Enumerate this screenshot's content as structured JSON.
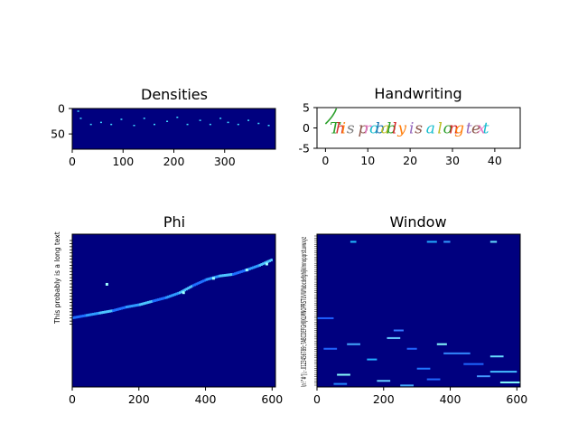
{
  "chart_data": [
    {
      "type": "heatmap",
      "title": "Densities",
      "xlim": [
        0,
        400
      ],
      "ylim": [
        0,
        80
      ],
      "xticks": [
        "0",
        "100",
        "200",
        "300"
      ],
      "yticks": [
        "0",
        "50"
      ],
      "colormap": "jet",
      "background_color": "#00007f",
      "hot_cells": [
        [
          10,
          4
        ],
        [
          15,
          18
        ],
        [
          35,
          30
        ],
        [
          55,
          26
        ],
        [
          75,
          30
        ],
        [
          95,
          20
        ],
        [
          120,
          32
        ],
        [
          140,
          18
        ],
        [
          160,
          30
        ],
        [
          185,
          24
        ],
        [
          205,
          16
        ],
        [
          225,
          30
        ],
        [
          250,
          22
        ],
        [
          270,
          30
        ],
        [
          290,
          18
        ],
        [
          305,
          26
        ],
        [
          325,
          30
        ],
        [
          345,
          22
        ],
        [
          365,
          28
        ],
        [
          385,
          32
        ]
      ]
    },
    {
      "type": "line",
      "title": "Handwriting",
      "xlim": [
        -2,
        46
      ],
      "ylim": [
        -5,
        5
      ],
      "xticks": [
        "0",
        "10",
        "20",
        "30",
        "40"
      ],
      "yticks": [
        "5",
        "0",
        "-5"
      ],
      "annotation_text": "This probably is a long text",
      "stroke_colors": [
        "#2ca02c",
        "#d62728",
        "#ff7f0e",
        "#7f7f7f",
        "#9467bd",
        "#8c564b",
        "#e377c2",
        "#17becf",
        "#1f77b4",
        "#bcbd22"
      ]
    },
    {
      "type": "heatmap",
      "title": "Phi",
      "xlim": [
        0,
        610
      ],
      "xticks": [
        "0",
        "200",
        "400",
        "600"
      ],
      "ytick_labels": [
        "T",
        "h",
        "i",
        "s",
        " ",
        "p",
        "r",
        "o",
        "b",
        "a",
        "b",
        "l",
        "y",
        " ",
        "i",
        "s",
        " ",
        "a",
        " ",
        "l",
        "o",
        "n",
        "g",
        " ",
        "t",
        "e",
        "x",
        "t"
      ],
      "ytick_label_text": "This probably is a long text",
      "colormap": "jet",
      "background_color": "#00007f",
      "alignment_path": [
        [
          0,
          25
        ],
        [
          40,
          24
        ],
        [
          80,
          23
        ],
        [
          120,
          22
        ],
        [
          160,
          20.5
        ],
        [
          200,
          19.5
        ],
        [
          240,
          18
        ],
        [
          280,
          16.5
        ],
        [
          320,
          14.5
        ],
        [
          360,
          11.5
        ],
        [
          400,
          9
        ],
        [
          440,
          7.5
        ],
        [
          480,
          6.8
        ],
        [
          520,
          5
        ],
        [
          560,
          3
        ],
        [
          600,
          0.5
        ]
      ]
    },
    {
      "type": "heatmap",
      "title": "Window",
      "xlim": [
        0,
        610
      ],
      "xticks": [
        "0",
        "200",
        "400",
        "600"
      ],
      "ytick_label_text": "\\n !\"#'(),-.0123456789:;?ABCDEFGHIJKLMNOPRSTUVWYabcdefghijklmnopqrstuvwxyz",
      "colormap": "jet",
      "background_color": "#00007f",
      "hot_segments": [
        [
          100,
          118,
          5,
          "#22bbff"
        ],
        [
          330,
          360,
          5,
          "#22aaff"
        ],
        [
          380,
          400,
          5,
          "#3399ff"
        ],
        [
          520,
          540,
          5,
          "#66ddff"
        ],
        [
          0,
          50,
          55,
          "#1f5fff"
        ],
        [
          230,
          260,
          63,
          "#3377ff"
        ],
        [
          210,
          250,
          68,
          "#66ccff"
        ],
        [
          90,
          130,
          72,
          "#44aaff"
        ],
        [
          360,
          390,
          72,
          "#88ffff"
        ],
        [
          20,
          60,
          75,
          "#2266ff"
        ],
        [
          270,
          300,
          75,
          "#2266ff"
        ],
        [
          380,
          460,
          78,
          "#3388ff"
        ],
        [
          520,
          560,
          80,
          "#66ddff"
        ],
        [
          150,
          180,
          82,
          "#22aaff"
        ],
        [
          440,
          500,
          85,
          "#1f66ff"
        ],
        [
          300,
          340,
          88,
          "#2277ff"
        ],
        [
          520,
          600,
          90,
          "#44bbff"
        ],
        [
          60,
          100,
          92,
          "#88ffff"
        ],
        [
          480,
          520,
          93,
          "#4499ff"
        ],
        [
          330,
          370,
          95,
          "#2266ff"
        ],
        [
          180,
          220,
          96,
          "#66ccff"
        ],
        [
          550,
          610,
          97,
          "#88ffff"
        ],
        [
          50,
          90,
          98,
          "#2288ff"
        ],
        [
          250,
          290,
          99,
          "#44aaff"
        ]
      ]
    }
  ]
}
